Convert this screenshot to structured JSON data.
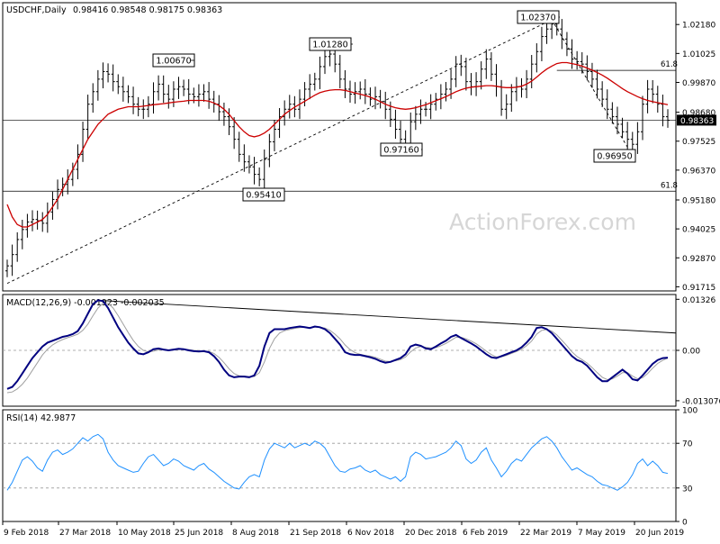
{
  "header": {
    "title": "USDCHF,Daily",
    "ohlc": "0.98416 0.98548 0.98175 0.98363"
  },
  "watermark": "ActionForex.com",
  "colors": {
    "candles": "#000000",
    "ema": "#cc0000",
    "macd_line": "#000080",
    "signal_line": "#a0a0a0",
    "rsi_line": "#1e90ff",
    "trendline": "#000000",
    "grid_dash": "#999999",
    "watermark": "#d6d6d6"
  },
  "chart_data": [
    {
      "type": "candlestick",
      "name": "price",
      "title": "USDCHF,Daily",
      "ylim": [
        0.9155,
        1.0305
      ],
      "yticks": [
        1.0218,
        1.01025,
        0.9987,
        0.9868,
        0.97525,
        0.9637,
        0.9518,
        0.94025,
        0.9287,
        0.91715
      ],
      "ytick_labels": [
        "1.02180",
        "1.01025",
        "0.99870",
        "0.98680",
        "0.97525",
        "0.96370",
        "0.95180",
        "0.94025",
        "0.92870",
        "0.91715"
      ],
      "current_price": 0.98363,
      "current_price_label": "0.98363",
      "x_dates": [
        "9 Feb 2018",
        "27 Mar 2018",
        "10 May 2018",
        "25 Jun 2018",
        "8 Aug 2018",
        "21 Sep 2018",
        "6 Nov 2018",
        "20 Dec 2018",
        "6 Feb 2019",
        "22 Mar 2019",
        "7 May 2019",
        "20 Jun 2019"
      ],
      "close_series": [
        0.9255,
        0.93,
        0.936,
        0.94,
        0.943,
        0.944,
        0.9435,
        0.9425,
        0.947,
        0.952,
        0.956,
        0.958,
        0.96,
        0.964,
        0.97,
        0.98,
        0.99,
        0.995,
        1.0,
        1.003,
        1.002,
        0.999,
        0.997,
        0.995,
        0.993,
        0.99,
        0.988,
        0.988,
        0.99,
        0.995,
        0.998,
        0.994,
        0.992,
        0.996,
        0.997,
        0.996,
        0.994,
        0.993,
        0.994,
        0.995,
        0.992,
        0.99,
        0.987,
        0.985,
        0.981,
        0.976,
        0.97,
        0.967,
        0.965,
        0.962,
        0.96,
        0.968,
        0.975,
        0.98,
        0.985,
        0.988,
        0.99,
        0.988,
        0.992,
        0.996,
        0.998,
        1.0,
        1.005,
        1.009,
        1.01,
        1.006,
        1.0,
        0.996,
        0.994,
        0.995,
        0.996,
        0.994,
        0.992,
        0.993,
        0.991,
        0.988,
        0.984,
        0.98,
        0.976,
        0.974,
        0.983,
        0.986,
        0.988,
        0.988,
        0.99,
        0.992,
        0.994,
        0.996,
        1.0,
        1.006,
        1.005,
        0.999,
        0.997,
        0.999,
        1.004,
        1.008,
        1.002,
        0.997,
        0.988,
        0.99,
        0.995,
        0.997,
        0.996,
        1.0,
        1.006,
        1.011,
        1.017,
        1.02,
        1.022,
        1.02,
        1.016,
        1.012,
        1.008,
        1.007,
        1.006,
        1.003,
        1.0,
        0.996,
        0.992,
        0.988,
        0.985,
        0.982,
        0.979,
        0.976,
        0.974,
        0.979,
        0.99,
        0.996,
        0.994,
        0.99,
        0.985,
        0.9836
      ],
      "ema_series": [
        0.95,
        0.945,
        0.942,
        0.941,
        0.941,
        0.942,
        0.943,
        0.944,
        0.946,
        0.949,
        0.952,
        0.956,
        0.96,
        0.964,
        0.968,
        0.972,
        0.976,
        0.979,
        0.982,
        0.984,
        0.986,
        0.987,
        0.988,
        0.9885,
        0.989,
        0.989,
        0.989,
        0.9892,
        0.9895,
        0.9898,
        0.99,
        0.9902,
        0.9905,
        0.9908,
        0.991,
        0.9912,
        0.9915,
        0.9915,
        0.9915,
        0.9915,
        0.9912,
        0.9905,
        0.9895,
        0.988,
        0.986,
        0.9835,
        0.981,
        0.979,
        0.9775,
        0.977,
        0.9775,
        0.9785,
        0.98,
        0.982,
        0.984,
        0.986,
        0.9875,
        0.9888,
        0.99,
        0.9912,
        0.9924,
        0.9936,
        0.9946,
        0.9952,
        0.9956,
        0.9958,
        0.9958,
        0.9955,
        0.995,
        0.9945,
        0.994,
        0.9935,
        0.9928,
        0.992,
        0.991,
        0.99,
        0.9892,
        0.9886,
        0.9882,
        0.988,
        0.9882,
        0.9886,
        0.9892,
        0.9898,
        0.9906,
        0.9914,
        0.9922,
        0.993,
        0.994,
        0.995,
        0.9958,
        0.9964,
        0.9968,
        0.997,
        0.9972,
        0.9974,
        0.9974,
        0.9972,
        0.9968,
        0.9966,
        0.9966,
        0.9968,
        0.9972,
        0.998,
        0.9992,
        1.0008,
        1.0025,
        1.004,
        1.0052,
        1.0062,
        1.0066,
        1.0066,
        1.0062,
        1.0058,
        1.0052,
        1.0044,
        1.0036,
        1.0026,
        1.0016,
        1.0004,
        0.999,
        0.9976,
        0.9962,
        0.995,
        0.994,
        0.993,
        0.9922,
        0.9915,
        0.991,
        0.9906,
        0.9902,
        0.9898
      ],
      "annotations": [
        {
          "label": "1.00670",
          "value": 1.0067
        },
        {
          "label": "1.01280",
          "value": 1.0128
        },
        {
          "label": "1.02370",
          "value": 1.0237
        },
        {
          "label": "0.95410",
          "value": 0.9541
        },
        {
          "label": "0.97160",
          "value": 0.9716
        },
        {
          "label": "0.96950",
          "value": 0.9695
        }
      ],
      "fib_levels": [
        {
          "label": "61.8",
          "value": 1.0035
        },
        {
          "label": "61.8",
          "value": 0.9553
        }
      ]
    },
    {
      "type": "line",
      "name": "macd",
      "title": "MACD(12,26,9) -0.001923 -0.002035",
      "ylim": [
        -0.0145,
        0.0145
      ],
      "yticks": [
        0.01326,
        0.0,
        -0.013076
      ],
      "ytick_labels": [
        "0.01326",
        "0.00",
        "-0.013076"
      ],
      "macd_series": [
        -0.01,
        -0.0095,
        -0.008,
        -0.006,
        -0.004,
        -0.002,
        -0.0005,
        0.001,
        0.002,
        0.0025,
        0.003,
        0.0035,
        0.0038,
        0.0042,
        0.005,
        0.007,
        0.0095,
        0.012,
        0.013,
        0.0128,
        0.011,
        0.0085,
        0.006,
        0.004,
        0.002,
        0.0005,
        -0.0008,
        -0.001,
        -0.0005,
        0.0003,
        0.0005,
        0.0002,
        0.0,
        0.0002,
        0.0004,
        0.0003,
        0.0,
        -0.0002,
        -0.0003,
        -0.0002,
        -0.0005,
        -0.0015,
        -0.003,
        -0.005,
        -0.0065,
        -0.007,
        -0.0068,
        -0.0068,
        -0.007,
        -0.0065,
        -0.004,
        0.001,
        0.0045,
        0.0055,
        0.0055,
        0.0055,
        0.0058,
        0.006,
        0.0062,
        0.006,
        0.0058,
        0.0062,
        0.006,
        0.0055,
        0.0045,
        0.003,
        0.0015,
        -0.0005,
        -0.001,
        -0.0012,
        -0.0012,
        -0.0015,
        -0.0018,
        -0.0022,
        -0.0028,
        -0.0032,
        -0.003,
        -0.0025,
        -0.002,
        -0.001,
        0.001,
        0.0015,
        0.0012,
        0.0005,
        0.0003,
        0.001,
        0.0018,
        0.0025,
        0.0035,
        0.004,
        0.0032,
        0.0025,
        0.0018,
        0.001,
        0.0,
        -0.001,
        -0.0018,
        -0.002,
        -0.0015,
        -0.001,
        -0.0005,
        0.0,
        0.0008,
        0.002,
        0.0035,
        0.0058,
        0.006,
        0.0055,
        0.0045,
        0.003,
        0.0015,
        0.0,
        -0.0015,
        -0.0025,
        -0.003,
        -0.004,
        -0.0055,
        -0.007,
        -0.008,
        -0.008,
        -0.007,
        -0.006,
        -0.005,
        -0.006,
        -0.0075,
        -0.0078,
        -0.0065,
        -0.005,
        -0.0035,
        -0.0025,
        -0.002,
        -0.0019
      ],
      "signal_series": [
        -0.011,
        -0.0108,
        -0.01,
        -0.0088,
        -0.0072,
        -0.0052,
        -0.0032,
        -0.0012,
        0.0003,
        0.0014,
        0.0022,
        0.0028,
        0.0033,
        0.0037,
        0.0042,
        0.0052,
        0.0068,
        0.009,
        0.011,
        0.0122,
        0.0122,
        0.011,
        0.009,
        0.0068,
        0.0046,
        0.0026,
        0.001,
        0.0,
        -0.0004,
        -0.0002,
        0.0001,
        0.0002,
        0.0001,
        0.0001,
        0.0002,
        0.0003,
        0.0002,
        0.0,
        -0.0001,
        -0.0002,
        -0.0003,
        -0.0008,
        -0.0018,
        -0.0032,
        -0.0048,
        -0.006,
        -0.0066,
        -0.0067,
        -0.0068,
        -0.0068,
        -0.0058,
        -0.003,
        0.0005,
        0.003,
        0.0045,
        0.0051,
        0.0054,
        0.0057,
        0.0059,
        0.006,
        0.0059,
        0.006,
        0.006,
        0.0058,
        0.0052,
        0.0042,
        0.003,
        0.0014,
        0.0002,
        -0.0006,
        -0.001,
        -0.0013,
        -0.0015,
        -0.0018,
        -0.0023,
        -0.0028,
        -0.0029,
        -0.0027,
        -0.0024,
        -0.0017,
        -0.0004,
        0.0006,
        0.001,
        0.0008,
        0.0006,
        0.0007,
        0.0012,
        0.0018,
        0.0026,
        0.0034,
        0.0034,
        0.003,
        0.0024,
        0.0017,
        0.0008,
        -0.0002,
        -0.0011,
        -0.0017,
        -0.0017,
        -0.0013,
        -0.0008,
        -0.0003,
        0.0003,
        0.0012,
        0.0024,
        0.0042,
        0.0052,
        0.0054,
        0.005,
        0.004,
        0.0026,
        0.0012,
        -0.0004,
        -0.0016,
        -0.0024,
        -0.0033,
        -0.0045,
        -0.0058,
        -0.007,
        -0.0076,
        -0.0074,
        -0.0067,
        -0.0058,
        -0.0058,
        -0.0067,
        -0.0074,
        -0.0071,
        -0.006,
        -0.0046,
        -0.0034,
        -0.0026,
        -0.002
      ]
    },
    {
      "type": "line",
      "name": "rsi",
      "title": "RSI(14) 42.9877",
      "ylim": [
        0,
        100
      ],
      "yticks": [
        100,
        70,
        30,
        0
      ],
      "ytick_labels": [
        "100",
        "70",
        "30",
        "0"
      ],
      "series": [
        28,
        35,
        45,
        55,
        58,
        54,
        48,
        45,
        55,
        62,
        64,
        60,
        62,
        65,
        70,
        75,
        72,
        76,
        78,
        74,
        62,
        55,
        50,
        48,
        46,
        44,
        45,
        52,
        58,
        60,
        55,
        50,
        52,
        56,
        54,
        50,
        48,
        46,
        50,
        52,
        47,
        44,
        40,
        36,
        33,
        30,
        29,
        35,
        40,
        42,
        40,
        55,
        65,
        70,
        68,
        66,
        70,
        66,
        68,
        70,
        68,
        72,
        70,
        66,
        58,
        50,
        45,
        44,
        47,
        48,
        50,
        46,
        44,
        46,
        42,
        40,
        38,
        40,
        36,
        40,
        58,
        62,
        60,
        56,
        57,
        58,
        60,
        62,
        66,
        72,
        68,
        56,
        52,
        55,
        62,
        66,
        55,
        48,
        40,
        45,
        52,
        56,
        54,
        60,
        66,
        70,
        74,
        76,
        72,
        66,
        58,
        52,
        46,
        48,
        45,
        42,
        40,
        36,
        33,
        32,
        30,
        28,
        31,
        35,
        42,
        52,
        56,
        50,
        54,
        50,
        44,
        43
      ]
    }
  ]
}
